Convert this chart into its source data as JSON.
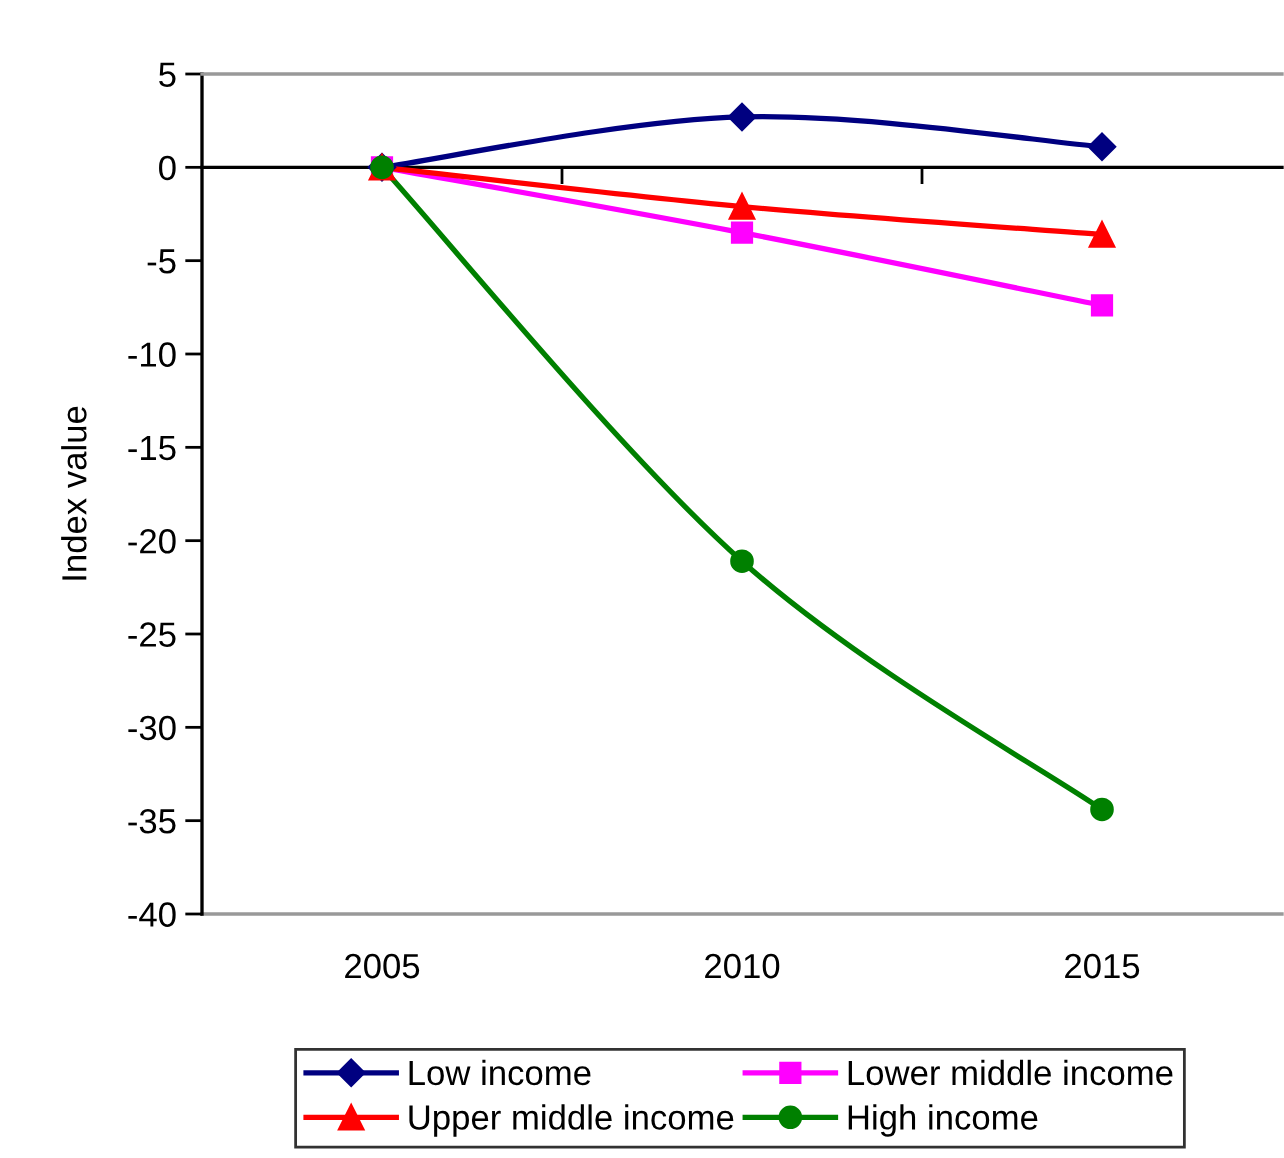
{
  "chart_data": {
    "type": "line",
    "ylabel": "Index value",
    "categories": [
      "2005",
      "2010",
      "2015"
    ],
    "ylim": [
      -40,
      5
    ],
    "yticks": [
      -40,
      -35,
      -30,
      -25,
      -20,
      -15,
      -10,
      -5,
      0,
      5
    ],
    "grid": false,
    "legend": "bottom",
    "line_style": "solid",
    "ref_lines": [
      {
        "axis": "y",
        "value": 0,
        "color": "#000000"
      }
    ],
    "series": [
      {
        "name": "Low income",
        "color": "#000080",
        "marker": "diamond",
        "values": [
          0,
          2.7,
          1.1
        ]
      },
      {
        "name": "Lower middle income",
        "color": "#ff00ff",
        "marker": "square",
        "values": [
          0,
          -3.5,
          -7.4
        ]
      },
      {
        "name": "Upper middle income",
        "color": "#ff0000",
        "marker": "triangle",
        "values": [
          0,
          -2.1,
          -3.6
        ]
      },
      {
        "name": "High income",
        "color": "#008000",
        "marker": "circle",
        "values": [
          0,
          -21.1,
          -34.4
        ]
      }
    ]
  }
}
